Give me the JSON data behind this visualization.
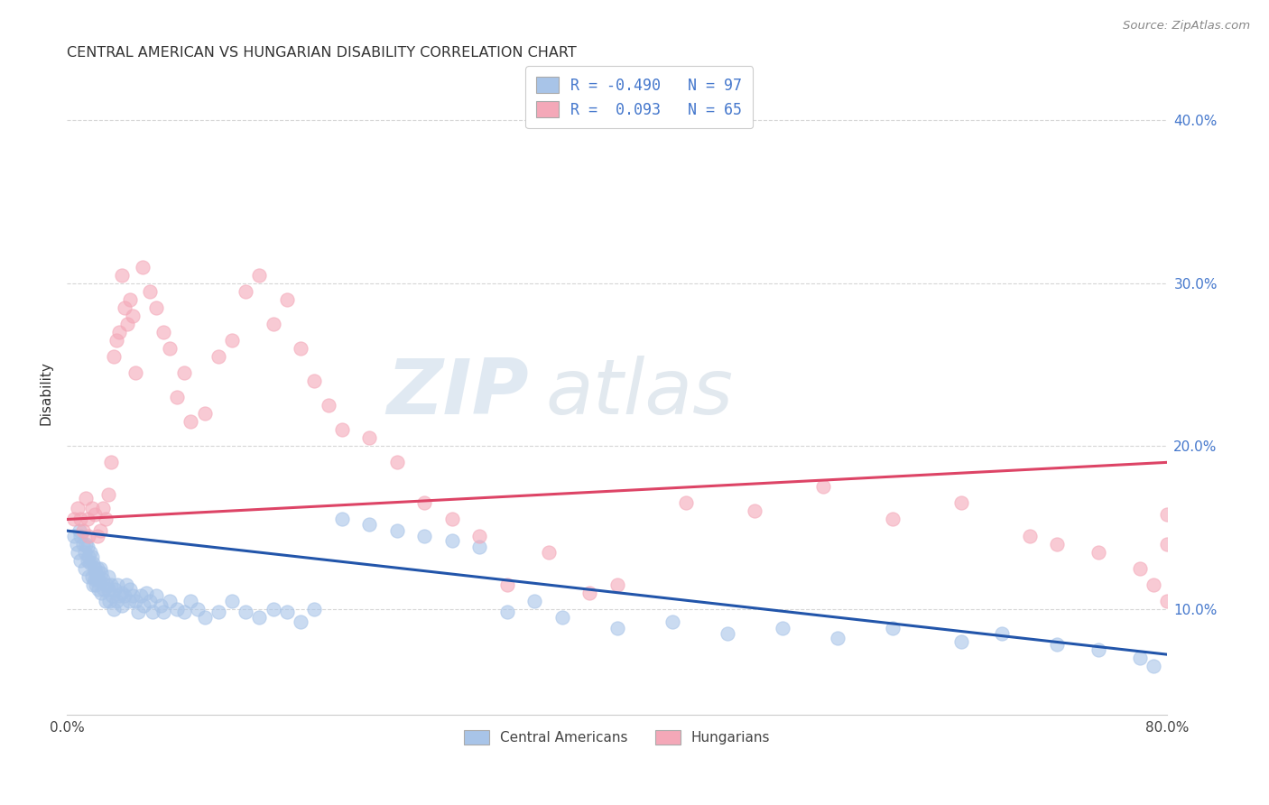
{
  "title": "CENTRAL AMERICAN VS HUNGARIAN DISABILITY CORRELATION CHART",
  "source": "Source: ZipAtlas.com",
  "ylabel": "Disability",
  "ytick_labels": [
    "10.0%",
    "20.0%",
    "30.0%",
    "40.0%"
  ],
  "ytick_values": [
    0.1,
    0.2,
    0.3,
    0.4
  ],
  "xlim": [
    0.0,
    0.8
  ],
  "ylim": [
    0.035,
    0.43
  ],
  "watermark_zip": "ZIP",
  "watermark_atlas": "atlas",
  "legend_blue_r": "R = -0.490",
  "legend_blue_n": "N = 97",
  "legend_pink_r": "R =  0.093",
  "legend_pink_n": "N = 65",
  "blue_color": "#a8c4e8",
  "pink_color": "#f4a8b8",
  "blue_line_color": "#2255aa",
  "pink_line_color": "#dd4466",
  "blue_scatter_x": [
    0.005,
    0.007,
    0.008,
    0.009,
    0.01,
    0.01,
    0.012,
    0.013,
    0.013,
    0.014,
    0.015,
    0.015,
    0.016,
    0.016,
    0.017,
    0.017,
    0.018,
    0.018,
    0.019,
    0.019,
    0.02,
    0.02,
    0.021,
    0.021,
    0.022,
    0.022,
    0.023,
    0.023,
    0.024,
    0.025,
    0.025,
    0.026,
    0.027,
    0.028,
    0.029,
    0.03,
    0.03,
    0.031,
    0.032,
    0.033,
    0.034,
    0.035,
    0.036,
    0.037,
    0.038,
    0.04,
    0.04,
    0.042,
    0.043,
    0.045,
    0.046,
    0.048,
    0.05,
    0.052,
    0.054,
    0.056,
    0.058,
    0.06,
    0.062,
    0.065,
    0.068,
    0.07,
    0.075,
    0.08,
    0.085,
    0.09,
    0.095,
    0.1,
    0.11,
    0.12,
    0.13,
    0.14,
    0.15,
    0.16,
    0.17,
    0.18,
    0.2,
    0.22,
    0.24,
    0.26,
    0.28,
    0.3,
    0.32,
    0.34,
    0.36,
    0.4,
    0.44,
    0.48,
    0.52,
    0.56,
    0.6,
    0.65,
    0.68,
    0.72,
    0.75,
    0.78,
    0.79
  ],
  "blue_scatter_y": [
    0.145,
    0.14,
    0.135,
    0.148,
    0.13,
    0.145,
    0.14,
    0.135,
    0.125,
    0.14,
    0.13,
    0.138,
    0.132,
    0.12,
    0.135,
    0.128,
    0.12,
    0.132,
    0.115,
    0.128,
    0.125,
    0.118,
    0.122,
    0.115,
    0.125,
    0.12,
    0.118,
    0.112,
    0.125,
    0.122,
    0.11,
    0.118,
    0.112,
    0.105,
    0.115,
    0.12,
    0.112,
    0.105,
    0.115,
    0.108,
    0.1,
    0.112,
    0.105,
    0.115,
    0.108,
    0.11,
    0.102,
    0.108,
    0.115,
    0.105,
    0.112,
    0.108,
    0.105,
    0.098,
    0.108,
    0.102,
    0.11,
    0.105,
    0.098,
    0.108,
    0.102,
    0.098,
    0.105,
    0.1,
    0.098,
    0.105,
    0.1,
    0.095,
    0.098,
    0.105,
    0.098,
    0.095,
    0.1,
    0.098,
    0.092,
    0.1,
    0.155,
    0.152,
    0.148,
    0.145,
    0.142,
    0.138,
    0.098,
    0.105,
    0.095,
    0.088,
    0.092,
    0.085,
    0.088,
    0.082,
    0.088,
    0.08,
    0.085,
    0.078,
    0.075,
    0.07,
    0.065
  ],
  "pink_scatter_x": [
    0.005,
    0.008,
    0.01,
    0.012,
    0.014,
    0.015,
    0.016,
    0.018,
    0.02,
    0.022,
    0.024,
    0.026,
    0.028,
    0.03,
    0.032,
    0.034,
    0.036,
    0.038,
    0.04,
    0.042,
    0.044,
    0.046,
    0.048,
    0.05,
    0.055,
    0.06,
    0.065,
    0.07,
    0.075,
    0.08,
    0.085,
    0.09,
    0.1,
    0.11,
    0.12,
    0.13,
    0.14,
    0.15,
    0.16,
    0.17,
    0.18,
    0.19,
    0.2,
    0.22,
    0.24,
    0.26,
    0.28,
    0.3,
    0.32,
    0.35,
    0.38,
    0.4,
    0.45,
    0.5,
    0.55,
    0.6,
    0.65,
    0.7,
    0.72,
    0.75,
    0.78,
    0.79,
    0.8,
    0.8,
    0.8
  ],
  "pink_scatter_y": [
    0.155,
    0.162,
    0.155,
    0.148,
    0.168,
    0.155,
    0.145,
    0.162,
    0.158,
    0.145,
    0.148,
    0.162,
    0.155,
    0.17,
    0.19,
    0.255,
    0.265,
    0.27,
    0.305,
    0.285,
    0.275,
    0.29,
    0.28,
    0.245,
    0.31,
    0.295,
    0.285,
    0.27,
    0.26,
    0.23,
    0.245,
    0.215,
    0.22,
    0.255,
    0.265,
    0.295,
    0.305,
    0.275,
    0.29,
    0.26,
    0.24,
    0.225,
    0.21,
    0.205,
    0.19,
    0.165,
    0.155,
    0.145,
    0.115,
    0.135,
    0.11,
    0.115,
    0.165,
    0.16,
    0.175,
    0.155,
    0.165,
    0.145,
    0.14,
    0.135,
    0.125,
    0.115,
    0.105,
    0.158,
    0.14
  ],
  "blue_line": {
    "x0": 0.0,
    "x1": 0.8,
    "y0": 0.148,
    "y1": 0.072
  },
  "pink_line": {
    "x0": 0.0,
    "x1": 0.8,
    "y0": 0.155,
    "y1": 0.19
  }
}
